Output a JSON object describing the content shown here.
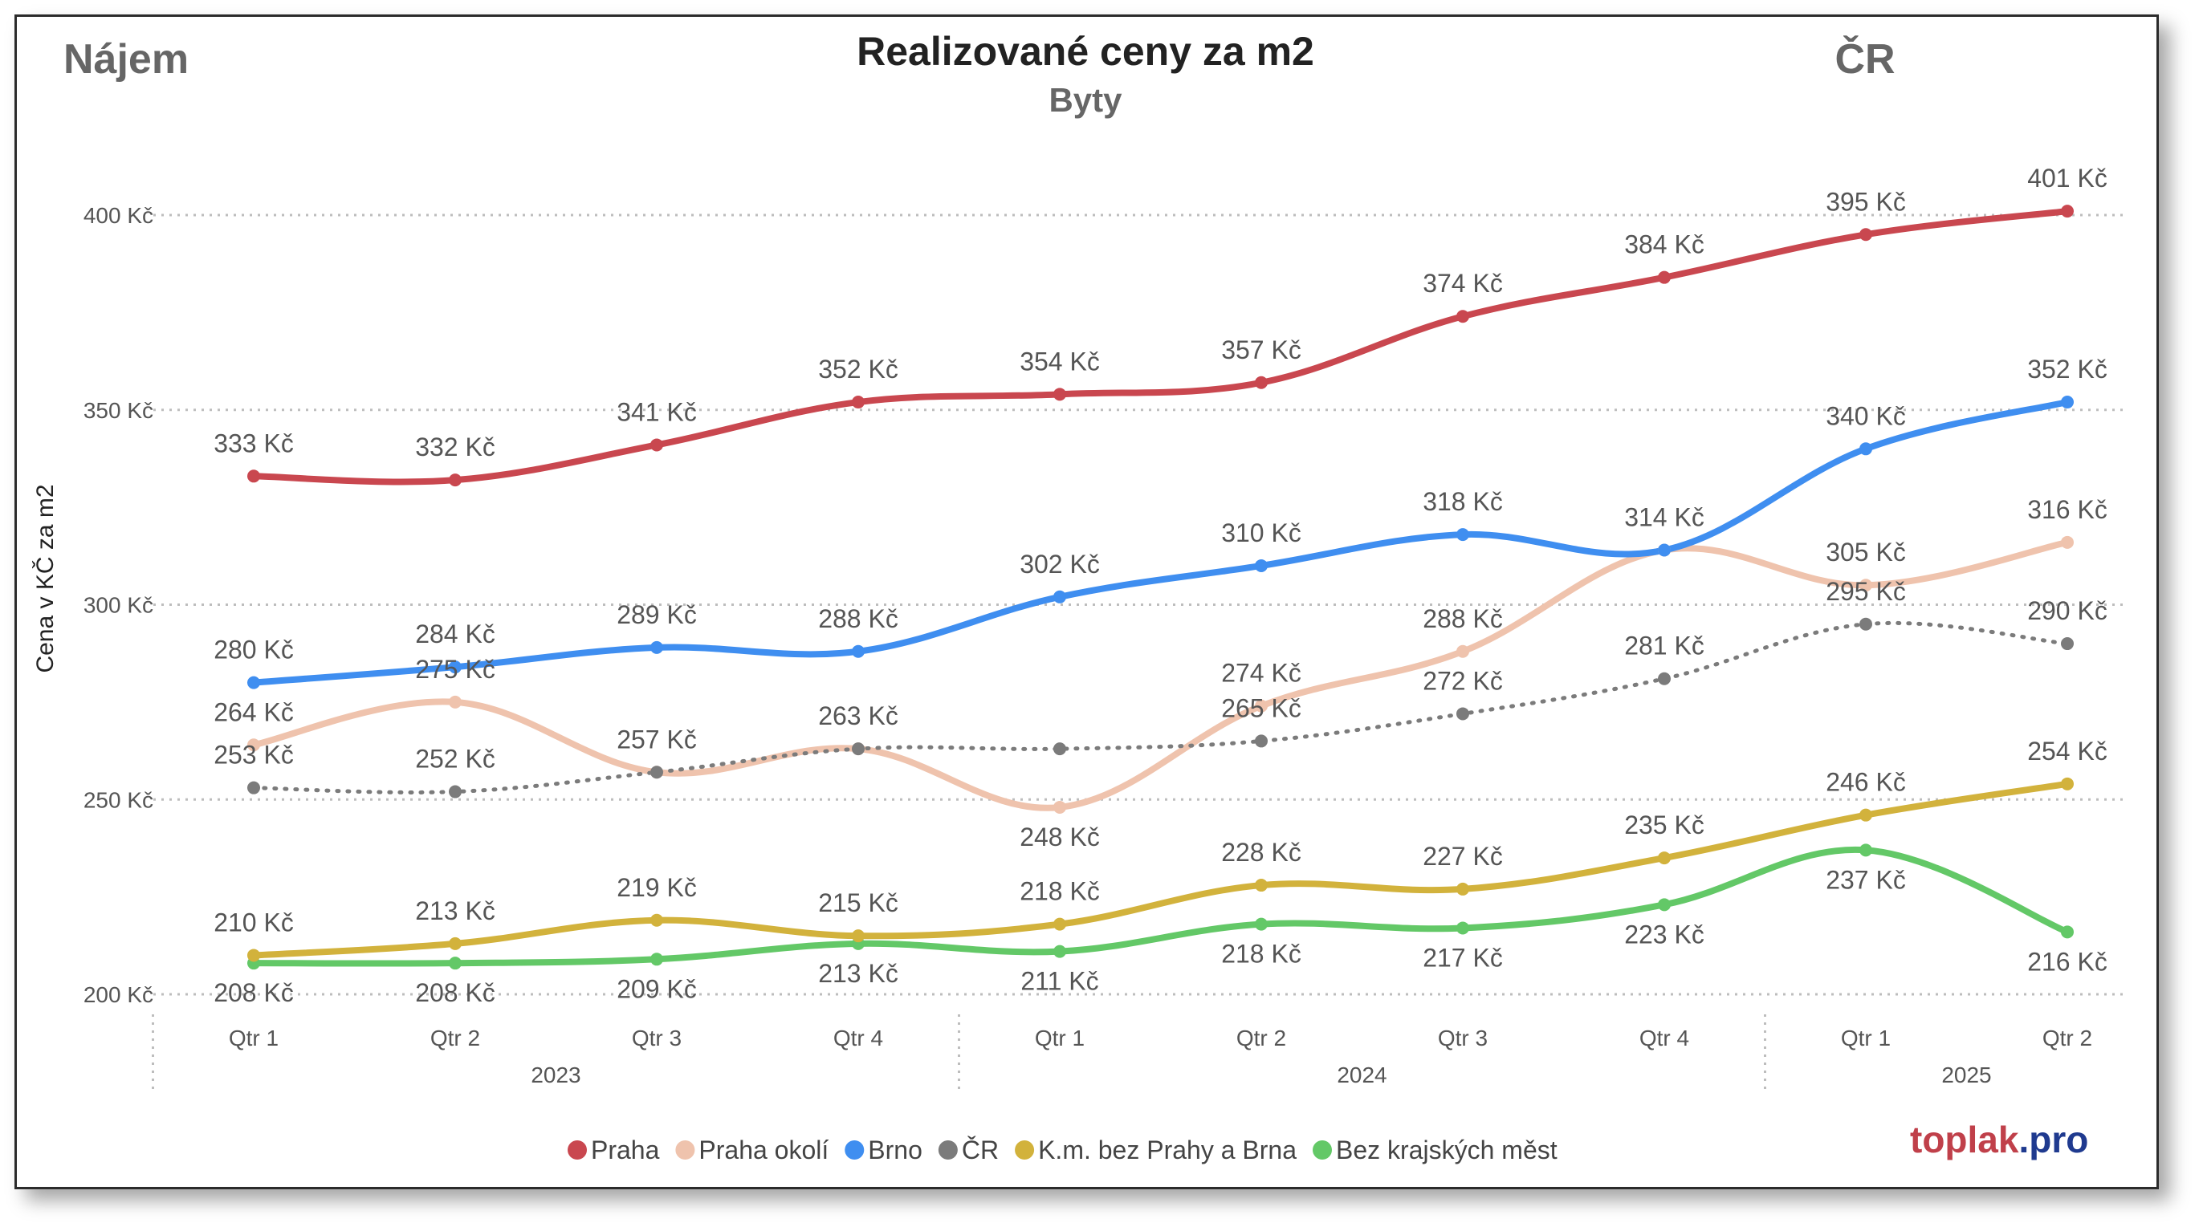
{
  "header": {
    "left_label": "Nájem",
    "title": "Realizované ceny za m2",
    "subtitle": "Byty",
    "right_label": "ČR"
  },
  "brand": {
    "part1": "toplak",
    "part2": ".pro",
    "color1": "#c0404a",
    "color2": "#1f3a8f"
  },
  "chart_data": {
    "type": "line",
    "title": "Realizované ceny za m2",
    "subtitle": "Byty",
    "ylabel": "Cena v KČ za m2",
    "ylim": [
      200,
      400
    ],
    "yticks": [
      200,
      250,
      300,
      350,
      400
    ],
    "ytick_labels": [
      "200 Kč",
      "250 Kč",
      "300 Kč",
      "350 Kč",
      "400 Kč"
    ],
    "grid": true,
    "legend_position": "bottom",
    "categories": [
      "Qtr 1",
      "Qtr 2",
      "Qtr 3",
      "Qtr 4",
      "Qtr 1",
      "Qtr 2",
      "Qtr 3",
      "Qtr 4",
      "Qtr 1",
      "Qtr 2"
    ],
    "year_groups": [
      {
        "label": "2023",
        "count": 4
      },
      {
        "label": "2024",
        "count": 4
      },
      {
        "label": "2025",
        "count": 2
      }
    ],
    "value_suffix": " Kč",
    "series": [
      {
        "name": "Praha",
        "color": "#c9474f",
        "dashed": false,
        "values": [
          333,
          332,
          341,
          352,
          354,
          357,
          374,
          384,
          395,
          401
        ],
        "label_pos": [
          "above",
          "above",
          "above",
          "above",
          "above",
          "above",
          "above",
          "above",
          "above",
          "above"
        ]
      },
      {
        "name": "Praha okolí",
        "color": "#efc3ad",
        "dashed": false,
        "values": [
          264,
          275,
          257,
          263,
          248,
          274,
          288,
          314,
          305,
          316
        ],
        "label_pos": [
          "above",
          "above",
          "above",
          "above",
          "below",
          "above",
          "above",
          "none",
          "above",
          "above"
        ]
      },
      {
        "name": "Brno",
        "color": "#3f8ef0",
        "dashed": false,
        "values": [
          280,
          284,
          289,
          288,
          302,
          310,
          318,
          314,
          340,
          352
        ],
        "label_pos": [
          "above",
          "above",
          "above",
          "above",
          "above",
          "above",
          "above",
          "above",
          "above",
          "above"
        ]
      },
      {
        "name": "ČR",
        "color": "#7b7b7b",
        "dashed": true,
        "values": [
          253,
          252,
          257,
          263,
          263,
          265,
          272,
          281,
          295,
          290
        ],
        "label_pos": [
          "above",
          "above",
          "none",
          "none",
          "none",
          "above",
          "above",
          "above",
          "above",
          "above"
        ]
      },
      {
        "name": "K.m. bez Prahy a Brna",
        "color": "#d2b23c",
        "dashed": false,
        "values": [
          210,
          213,
          219,
          215,
          218,
          228,
          227,
          235,
          246,
          254
        ],
        "label_pos": [
          "above",
          "above",
          "above",
          "above",
          "above",
          "above",
          "above",
          "above",
          "above",
          "above"
        ]
      },
      {
        "name": "Bez krajských měst",
        "color": "#63c867",
        "dashed": false,
        "values": [
          208,
          208,
          209,
          213,
          211,
          218,
          217,
          223,
          237,
          216
        ],
        "label_pos": [
          "below",
          "below",
          "below",
          "below",
          "below",
          "below",
          "below",
          "below",
          "below",
          "below"
        ]
      }
    ]
  }
}
